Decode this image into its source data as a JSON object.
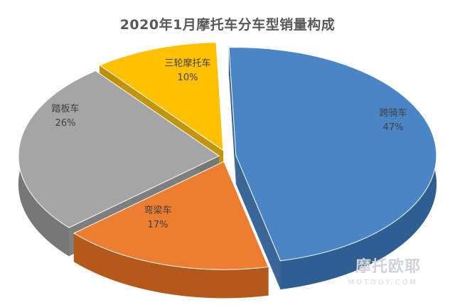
{
  "chart_data": {
    "type": "pie",
    "title": "2020年1月摩托车分车型销量构成",
    "slices": [
      {
        "label": "跨骑车",
        "value": 47,
        "display": "47%",
        "color": "#4a86c5",
        "side": "#2f5e92"
      },
      {
        "label": "弯梁车",
        "value": 17,
        "display": "17%",
        "color": "#ed7d31",
        "side": "#b4581c"
      },
      {
        "label": "踏板车",
        "value": 26,
        "display": "26%",
        "color": "#a5a5a5",
        "side": "#777777"
      },
      {
        "label": "三轮摩托车",
        "value": 10,
        "display": "10%",
        "color": "#ffc000",
        "side": "#c08f00"
      }
    ]
  },
  "watermark": {
    "text": "摩托欧耶",
    "sub": "MOTOOY.COM"
  }
}
